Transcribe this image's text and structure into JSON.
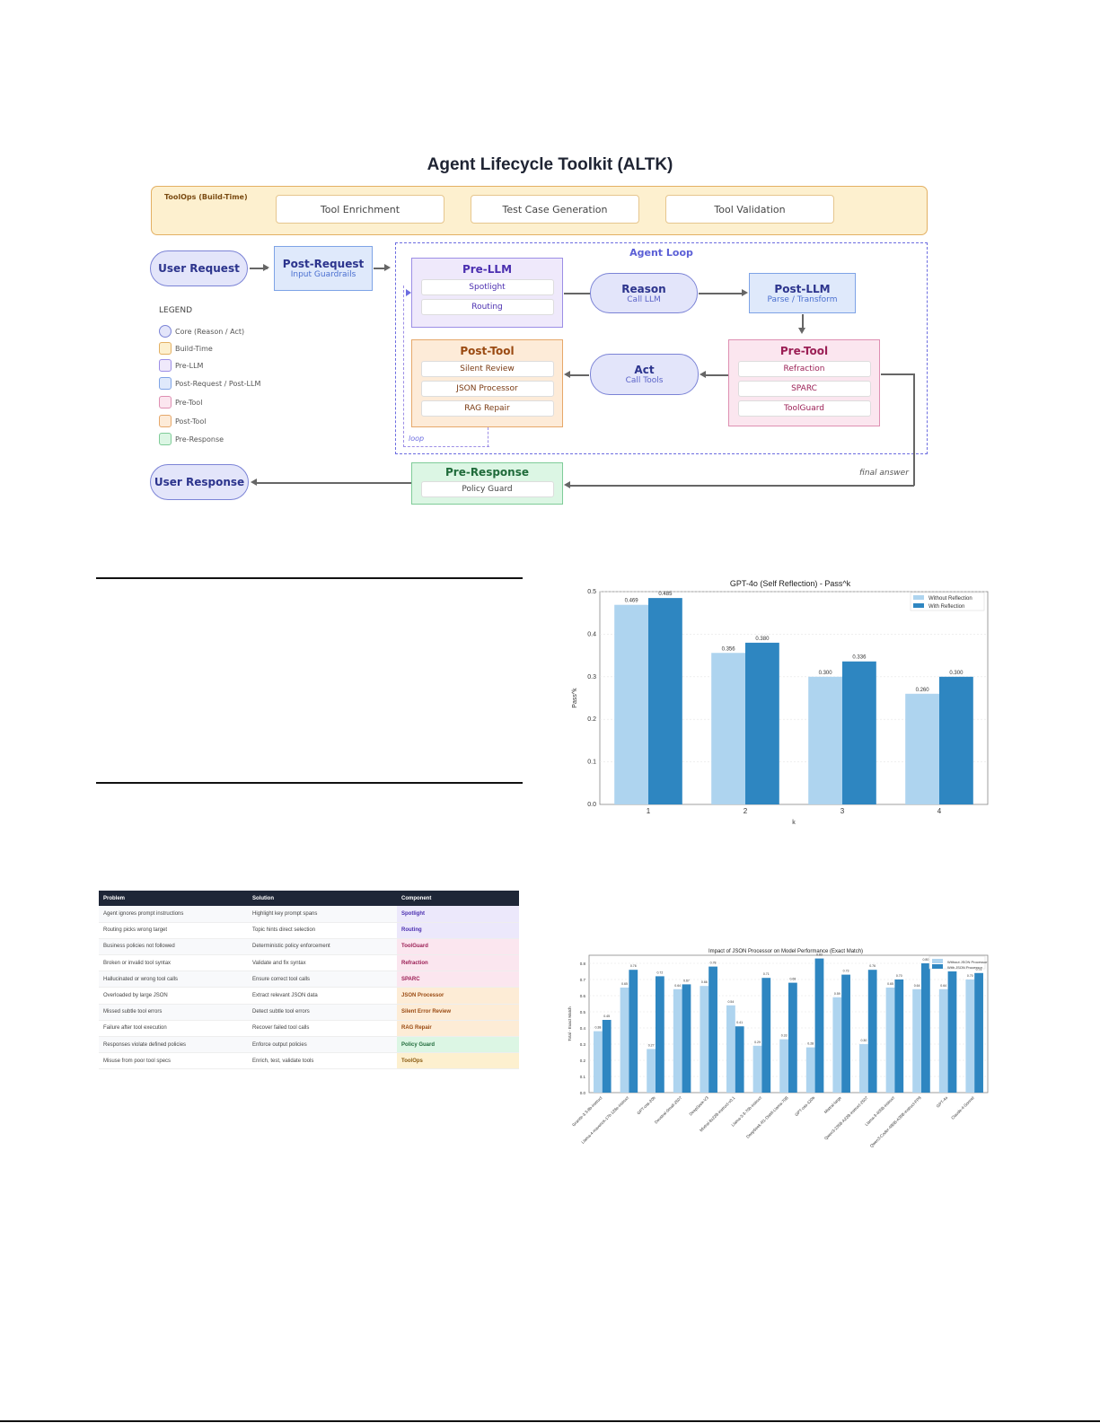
{
  "diagram": {
    "title": "Agent Lifecycle Toolkit (ALTK)",
    "toolops": {
      "label": "ToolOps (Build-Time)",
      "items": [
        "Tool Enrichment",
        "Test Case Generation",
        "Tool Validation"
      ]
    },
    "user_request": "User Request",
    "post_request": {
      "title": "Post-Request",
      "subtitle": "Input Guardrails"
    },
    "agent_loop_label": "Agent Loop",
    "pre_llm": {
      "title": "Pre-LLM",
      "items": [
        "Spotlight",
        "Routing"
      ]
    },
    "reason": {
      "title": "Reason",
      "subtitle": "Call LLM"
    },
    "post_llm": {
      "title": "Post-LLM",
      "subtitle": "Parse / Transform"
    },
    "pre_tool": {
      "title": "Pre-Tool",
      "items": [
        "Refraction",
        "SPARC",
        "ToolGuard"
      ]
    },
    "act": {
      "title": "Act",
      "subtitle": "Call Tools"
    },
    "post_tool": {
      "title": "Post-Tool",
      "items": [
        "Silent Review",
        "JSON Processor",
        "RAG Repair"
      ]
    },
    "loop_label": "loop",
    "pre_response": {
      "title": "Pre-Response",
      "items": [
        "Policy Guard"
      ]
    },
    "final_answer_label": "final answer",
    "user_response": "User Response",
    "legend": {
      "title": "LEGEND",
      "items": [
        {
          "label": "Core (Reason / Act)",
          "fill": "#e3e5fa",
          "border": "#7b83d6",
          "round": true
        },
        {
          "label": "Build-Time",
          "fill": "#fdf0cf",
          "border": "#e3b063"
        },
        {
          "label": "Pre-LLM",
          "fill": "#efe9fb",
          "border": "#9c8ee6"
        },
        {
          "label": "Post-Request / Post-LLM",
          "fill": "#dfe9fb",
          "border": "#7ea3e6"
        },
        {
          "label": "Pre-Tool",
          "fill": "#fbe6ef",
          "border": "#de8fb2"
        },
        {
          "label": "Post-Tool",
          "fill": "#fdebd8",
          "border": "#e6a86a"
        },
        {
          "label": "Pre-Response",
          "fill": "#dcf6e4",
          "border": "#7fcc98"
        }
      ]
    }
  },
  "table": {
    "headers": [
      "Problem",
      "Solution",
      "Component"
    ],
    "rows": [
      {
        "problem": "Agent ignores prompt instructions",
        "solution": "Highlight key prompt spans",
        "component": "Spotlight",
        "bg": "#ece8fb",
        "color": "#4b2fb0"
      },
      {
        "problem": "Routing picks wrong target",
        "solution": "Topic hints direct selection",
        "component": "Routing",
        "bg": "#ece8fb",
        "color": "#4b2fb0"
      },
      {
        "problem": "Business policies not followed",
        "solution": "Deterministic policy enforcement",
        "component": "ToolGuard",
        "bg": "#fbe6ef",
        "color": "#9b1f55"
      },
      {
        "problem": "Broken or invalid tool syntax",
        "solution": "Validate and fix syntax",
        "component": "Refraction",
        "bg": "#fbe6ef",
        "color": "#9b1f55"
      },
      {
        "problem": "Hallucinated or wrong tool calls",
        "solution": "Ensure correct tool calls",
        "component": "SPARC",
        "bg": "#fbe6ef",
        "color": "#9b1f55"
      },
      {
        "problem": "Overloaded by large JSON",
        "solution": "Extract relevant JSON data",
        "component": "JSON Processor",
        "bg": "#fdecd6",
        "color": "#9a4a12"
      },
      {
        "problem": "Missed subtle tool errors",
        "solution": "Detect subtle tool errors",
        "component": "Silent Error Review",
        "bg": "#fdecd6",
        "color": "#9a4a12"
      },
      {
        "problem": "Failure after tool execution",
        "solution": "Recover failed tool calls",
        "component": "RAG Repair",
        "bg": "#fdecd6",
        "color": "#9a4a12"
      },
      {
        "problem": "Responses violate defined policies",
        "solution": "Enforce output policies",
        "component": "Policy Guard",
        "bg": "#dcf6e4",
        "color": "#1f6b3a"
      },
      {
        "problem": "Misuse from poor tool specs",
        "solution": "Enrich, test, validate tools",
        "component": "ToolOps",
        "bg": "#fdf0cf",
        "color": "#8a5a10"
      }
    ]
  },
  "chart_data": [
    {
      "type": "bar",
      "title": "GPT-4o (Self Reflection) - Pass^k",
      "xlabel": "k",
      "ylabel": "Pass^k",
      "categories": [
        "1",
        "2",
        "3",
        "4"
      ],
      "series": [
        {
          "name": "Without Reflection",
          "color": "#aed4ef",
          "values": [
            0.469,
            0.356,
            0.3,
            0.26
          ]
        },
        {
          "name": "With Reflection",
          "color": "#2e86c1",
          "values": [
            0.485,
            0.38,
            0.336,
            0.3
          ]
        }
      ],
      "ylim": [
        0,
        0.5
      ],
      "yticks": [
        "0.0",
        "0.1",
        "0.2",
        "0.3",
        "0.4",
        "0.5"
      ],
      "grid": true,
      "legend_position": "upper right"
    },
    {
      "type": "bar",
      "title": "Impact of JSON Processor on Model Performance (Exact Match)",
      "xlabel": "",
      "ylabel": "Total - Exact Match",
      "categories": [
        "Granite-3.3-8b-instruct",
        "Llama-4-maverick-17b-128e-instruct",
        "GPT-oss-20b",
        "Devstral-Small-2507",
        "DeepSeek-V3",
        "Mixtral-8x22B-instruct-v0.1",
        "Llama-3-3-70b-instruct",
        "DeepSeek-R1-Distill-Llama-70B",
        "GPT-oss-120b",
        "Mistral-large",
        "Qwen3-235B-A22B-instruct-2507",
        "Llama-3-405B-instruct",
        "Qwen3-Coder-480B-A35B-instruct-FP8",
        "GPT-4o",
        "Claude-4-Sonnet"
      ],
      "series": [
        {
          "name": "Without JSON Processor",
          "color": "#aed4ef",
          "values": [
            0.38,
            0.65,
            0.27,
            0.64,
            0.66,
            0.54,
            0.29,
            0.33,
            0.28,
            0.59,
            0.3,
            0.65,
            0.64,
            0.64,
            0.7
          ]
        },
        {
          "name": "With JSON Processor",
          "color": "#2e86c1",
          "values": [
            0.45,
            0.76,
            0.72,
            0.67,
            0.78,
            0.41,
            0.71,
            0.68,
            0.83,
            0.73,
            0.76,
            0.7,
            0.8,
            0.75,
            0.74
          ]
        }
      ],
      "ylim": [
        0,
        0.85
      ],
      "yticks": [
        "0.0",
        "0.1",
        "0.2",
        "0.3",
        "0.4",
        "0.5",
        "0.6",
        "0.7",
        "0.8"
      ],
      "grid": true,
      "legend_position": "upper right"
    }
  ]
}
